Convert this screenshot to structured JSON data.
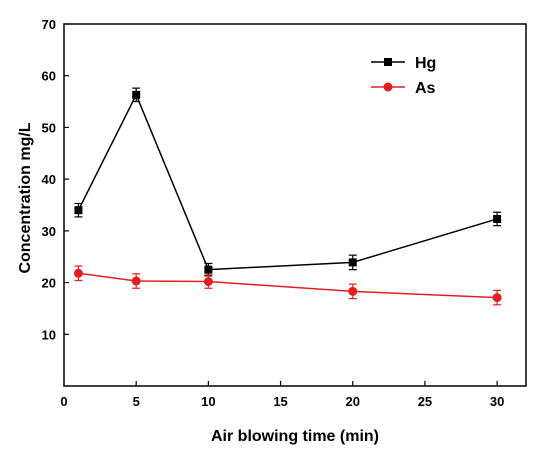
{
  "chart_data": {
    "type": "line",
    "xlabel": "Air blowing time (min)",
    "ylabel": "Concentration mg/L",
    "xlim": [
      0,
      32
    ],
    "ylim": [
      0,
      70
    ],
    "xticks": [
      0,
      5,
      10,
      15,
      20,
      25,
      30
    ],
    "yticks": [
      10,
      20,
      30,
      40,
      50,
      60,
      70
    ],
    "x": [
      1,
      5,
      10,
      20,
      30
    ],
    "grid": false,
    "legend_position": "top-right",
    "series": [
      {
        "name": "Hg",
        "color": "#000000",
        "marker": "square",
        "values": [
          34.0,
          56.3,
          22.5,
          23.9,
          32.3
        ],
        "errors": [
          1.3,
          1.3,
          1.2,
          1.4,
          1.3
        ]
      },
      {
        "name": "As",
        "color": "#e02020",
        "marker": "circle",
        "values": [
          21.8,
          20.3,
          20.2,
          18.3,
          17.1
        ],
        "errors": [
          1.4,
          1.4,
          1.3,
          1.4,
          1.4
        ]
      }
    ]
  }
}
